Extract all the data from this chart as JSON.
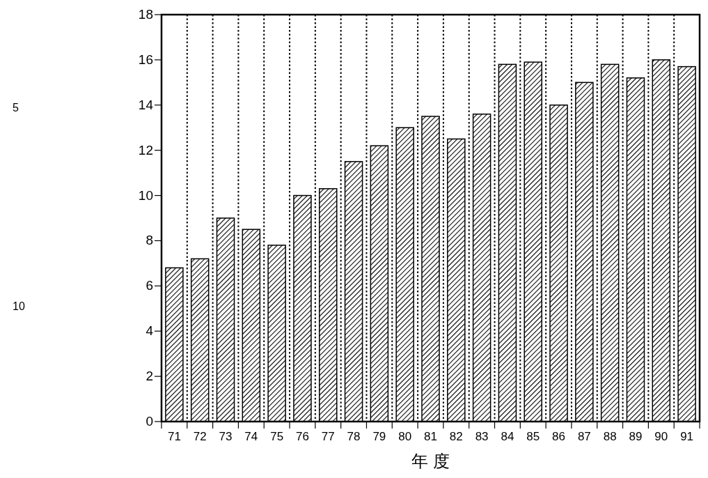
{
  "chart_data": {
    "type": "bar",
    "xlabel": "年 度",
    "categories": [
      "71",
      "72",
      "73",
      "74",
      "75",
      "76",
      "77",
      "78",
      "79",
      "80",
      "81",
      "82",
      "83",
      "84",
      "85",
      "86",
      "87",
      "88",
      "89",
      "90",
      "91"
    ],
    "values": [
      6.8,
      7.2,
      9.0,
      8.5,
      7.8,
      10.0,
      10.3,
      11.5,
      12.2,
      13.0,
      13.5,
      12.5,
      13.6,
      15.8,
      15.9,
      14.0,
      15.0,
      15.8,
      15.2,
      16.0,
      15.7
    ],
    "color": "#000000",
    "ylim": [
      0,
      18
    ],
    "yticks": [
      0,
      2,
      4,
      6,
      8,
      10,
      12,
      14,
      16,
      18
    ],
    "grid": "x",
    "annotations": [
      "5",
      "10"
    ]
  }
}
